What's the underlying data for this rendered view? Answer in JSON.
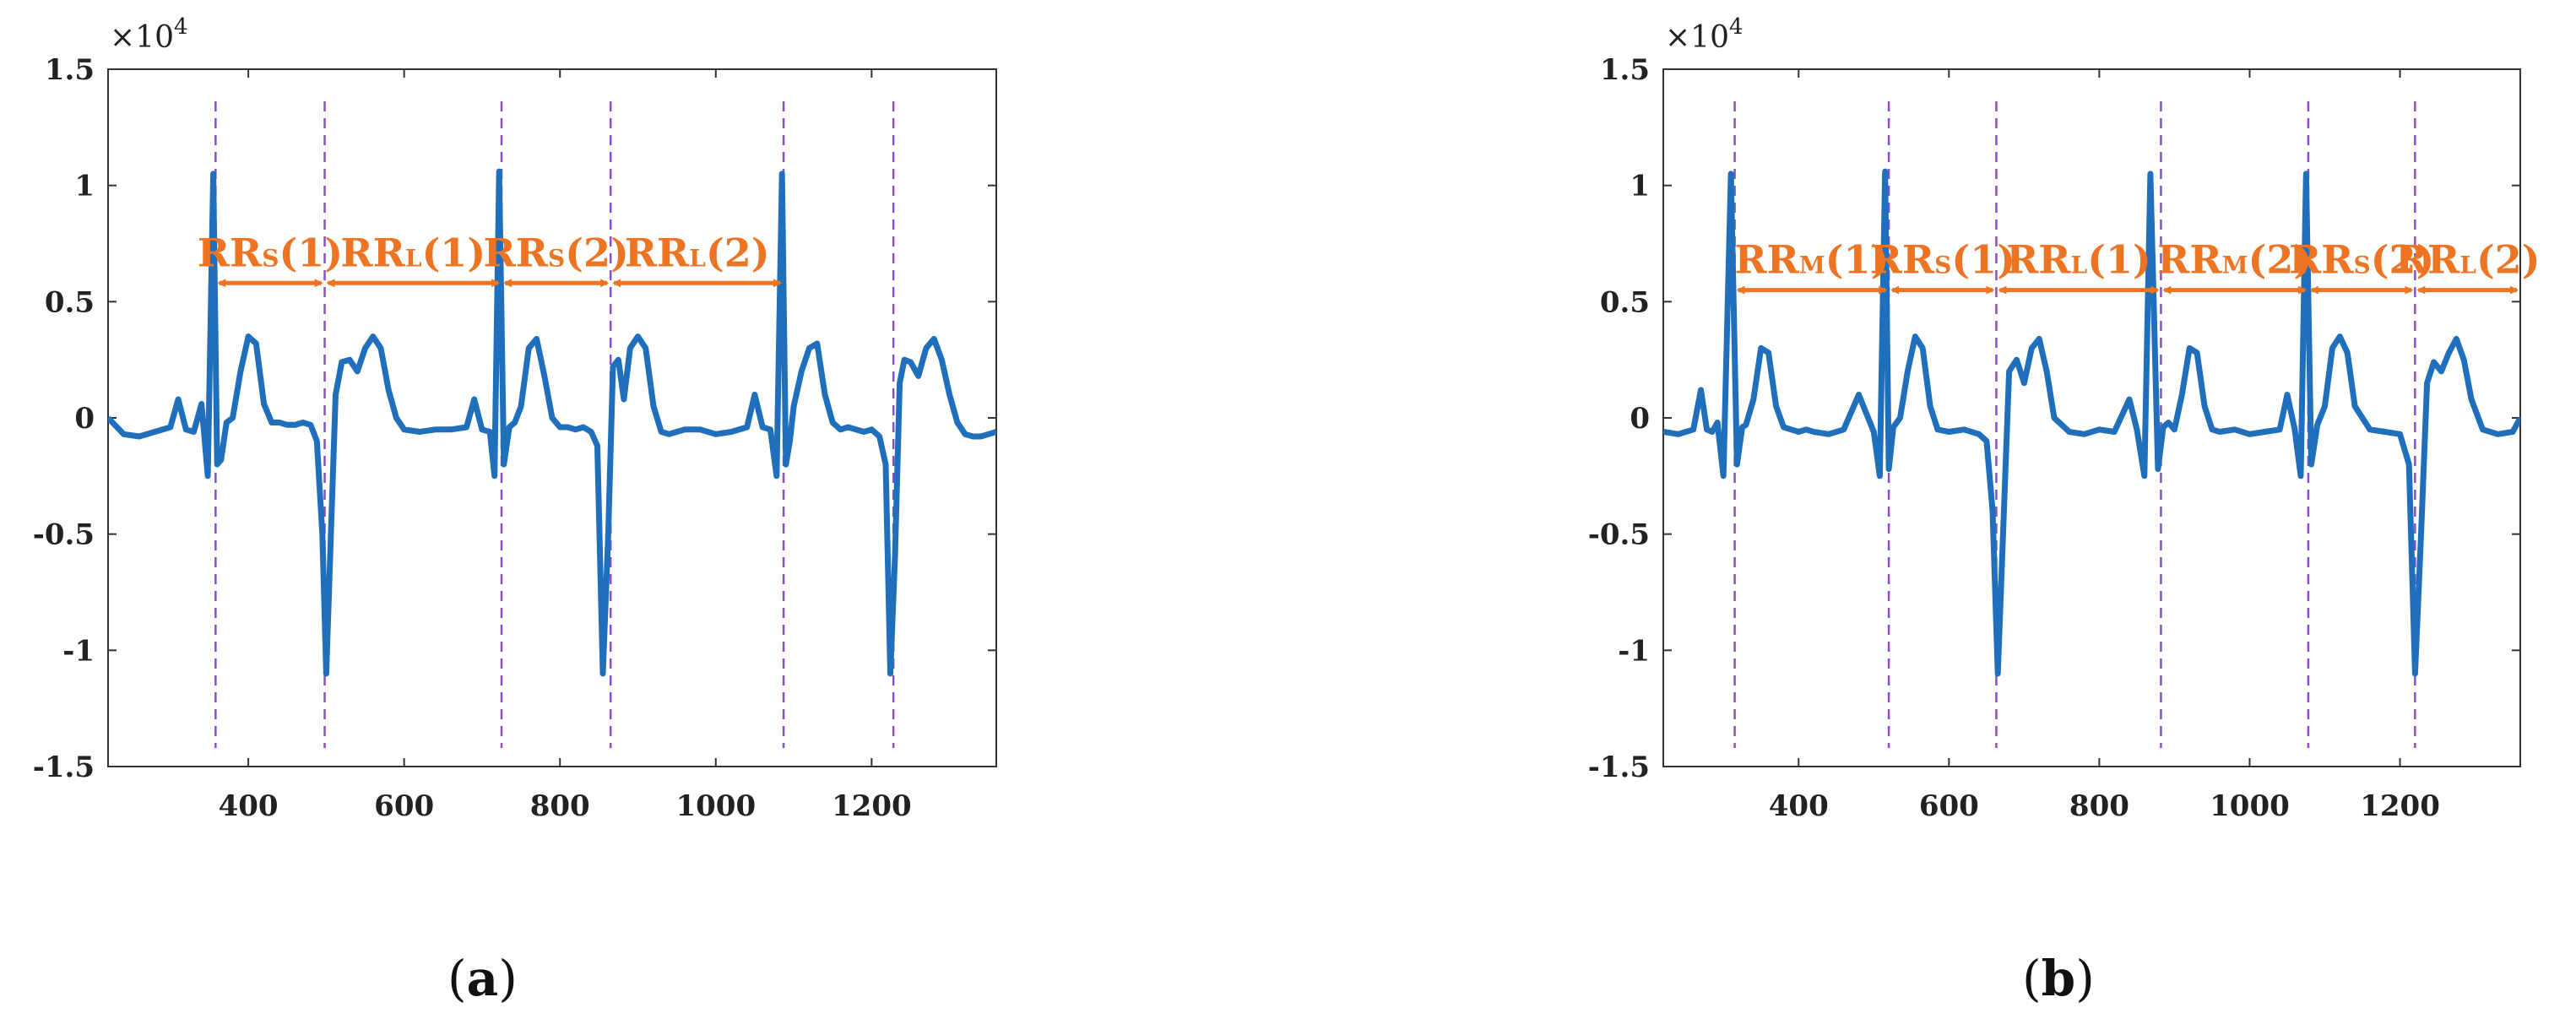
{
  "figure": {
    "caption_a": "a",
    "caption_b": "b",
    "exponent_label": "×10",
    "exponent_power": "4"
  },
  "colors": {
    "ecg": "#1f6fbd",
    "rpeak_line": "#8a4fc9",
    "interval": "#ec7423",
    "axis": "#333333"
  },
  "chart_data": [
    {
      "panel": "a",
      "type": "line",
      "title": "",
      "xlabel": "",
      "ylabel": "",
      "xlim": [
        220,
        1360
      ],
      "ylim": [
        -1.5,
        1.5
      ],
      "x_ticks": [
        400,
        600,
        800,
        1000,
        1200
      ],
      "y_ticks": [
        1.5,
        1,
        0.5,
        0,
        -0.5,
        -1,
        -1.5
      ],
      "y_tick_labels": [
        "1.5",
        "1",
        "0.5",
        "0",
        "-0.5",
        "-1",
        "-1.5"
      ],
      "grid": false,
      "series": [
        {
          "x": [
            220,
            240,
            260,
            280,
            300,
            310,
            320,
            330,
            340,
            348,
            355,
            360,
            365,
            372,
            380,
            390,
            400,
            410,
            420,
            430,
            440,
            450,
            460,
            470,
            480,
            488,
            495,
            500,
            505,
            512,
            520,
            530,
            540,
            550,
            560,
            570,
            580,
            590,
            600,
            620,
            640,
            660,
            680,
            690,
            700,
            710,
            716,
            722,
            728,
            735,
            742,
            750,
            760,
            770,
            780,
            790,
            800,
            810,
            820,
            830,
            840,
            848,
            855,
            862,
            868,
            875,
            882,
            890,
            900,
            910,
            920,
            930,
            940,
            950,
            960,
            980,
            1000,
            1020,
            1040,
            1050,
            1060,
            1070,
            1078,
            1085,
            1090,
            1095,
            1100,
            1110,
            1120,
            1130,
            1140,
            1150,
            1160,
            1170,
            1180,
            1190,
            1200,
            1210,
            1218,
            1224,
            1230,
            1236,
            1242,
            1250,
            1260,
            1270,
            1280,
            1290,
            1300,
            1310,
            1320,
            1330,
            1340,
            1350,
            1360
          ],
          "y": [
            0.0,
            -0.07,
            -0.08,
            -0.06,
            -0.04,
            0.08,
            -0.05,
            -0.06,
            0.06,
            -0.25,
            1.05,
            -0.2,
            -0.18,
            -0.02,
            0.0,
            0.2,
            0.35,
            0.32,
            0.06,
            -0.02,
            -0.02,
            -0.03,
            -0.03,
            -0.02,
            -0.03,
            -0.1,
            -0.5,
            -1.1,
            -0.6,
            0.1,
            0.24,
            0.25,
            0.2,
            0.3,
            0.35,
            0.3,
            0.12,
            0.0,
            -0.05,
            -0.06,
            -0.05,
            -0.05,
            -0.04,
            0.08,
            -0.05,
            -0.06,
            -0.25,
            1.06,
            -0.2,
            -0.04,
            -0.02,
            0.05,
            0.3,
            0.34,
            0.18,
            0.0,
            -0.04,
            -0.04,
            -0.05,
            -0.04,
            -0.06,
            -0.12,
            -1.1,
            -0.5,
            0.22,
            0.25,
            0.08,
            0.3,
            0.35,
            0.3,
            0.05,
            -0.06,
            -0.07,
            -0.06,
            -0.05,
            -0.05,
            -0.07,
            -0.06,
            -0.04,
            0.1,
            -0.04,
            -0.05,
            -0.25,
            1.05,
            -0.2,
            -0.1,
            0.05,
            0.2,
            0.3,
            0.32,
            0.1,
            -0.02,
            -0.05,
            -0.04,
            -0.05,
            -0.06,
            -0.05,
            -0.08,
            -0.2,
            -1.1,
            -0.6,
            0.15,
            0.25,
            0.24,
            0.18,
            0.3,
            0.34,
            0.25,
            0.1,
            -0.02,
            -0.07,
            -0.08,
            -0.08,
            -0.07,
            -0.06
          ]
        }
      ],
      "r_peak_markers_x": [
        358,
        498,
        725,
        865,
        1087,
        1228
      ],
      "intervals": [
        {
          "label": "RR",
          "sub": "S",
          "index": "(1)",
          "x_start": 358,
          "x_end": 498
        },
        {
          "label": "RR",
          "sub": "L",
          "index": "(1)",
          "x_start": 498,
          "x_end": 725
        },
        {
          "label": "RR",
          "sub": "S",
          "index": "(2)",
          "x_start": 725,
          "x_end": 865
        },
        {
          "label": "RR",
          "sub": "L",
          "index": "(2)",
          "x_start": 865,
          "x_end": 1087
        }
      ],
      "interval_level_y": 0.58
    },
    {
      "panel": "b",
      "type": "line",
      "title": "",
      "xlabel": "",
      "ylabel": "",
      "xlim": [
        220,
        1360
      ],
      "ylim": [
        -1.5,
        1.5
      ],
      "x_ticks": [
        400,
        600,
        800,
        1000,
        1200
      ],
      "y_ticks": [
        1.5,
        1,
        0.5,
        0,
        -0.5,
        -1,
        -1.5
      ],
      "y_tick_labels": [
        "1.5",
        "1",
        "0.5",
        "0",
        "-0.5",
        "-1",
        "-1.5"
      ],
      "grid": false,
      "series": [
        {
          "x": [
            220,
            240,
            260,
            270,
            278,
            285,
            292,
            300,
            310,
            318,
            325,
            330,
            340,
            350,
            360,
            370,
            380,
            390,
            400,
            410,
            420,
            440,
            460,
            480,
            500,
            508,
            515,
            520,
            526,
            535,
            545,
            555,
            565,
            575,
            585,
            600,
            620,
            640,
            650,
            658,
            665,
            672,
            680,
            690,
            700,
            710,
            720,
            730,
            740,
            760,
            780,
            800,
            820,
            840,
            850,
            860,
            868,
            878,
            885,
            892,
            900,
            910,
            920,
            930,
            940,
            950,
            960,
            980,
            1000,
            1020,
            1040,
            1050,
            1060,
            1068,
            1075,
            1082,
            1090,
            1100,
            1110,
            1120,
            1130,
            1140,
            1160,
            1180,
            1200,
            1212,
            1220,
            1228,
            1236,
            1245,
            1255,
            1265,
            1275,
            1285,
            1295,
            1310,
            1330,
            1350,
            1360
          ],
          "y": [
            -0.06,
            -0.07,
            -0.05,
            0.12,
            -0.05,
            -0.06,
            -0.02,
            -0.25,
            1.05,
            -0.2,
            -0.04,
            -0.03,
            0.08,
            0.3,
            0.28,
            0.05,
            -0.04,
            -0.05,
            -0.06,
            -0.05,
            -0.06,
            -0.07,
            -0.05,
            0.1,
            -0.06,
            -0.25,
            1.06,
            -0.22,
            -0.04,
            0.0,
            0.2,
            0.35,
            0.3,
            0.05,
            -0.05,
            -0.06,
            -0.05,
            -0.07,
            -0.1,
            -0.4,
            -1.1,
            -0.5,
            0.2,
            0.25,
            0.15,
            0.3,
            0.34,
            0.2,
            0.0,
            -0.06,
            -0.07,
            -0.05,
            -0.06,
            0.08,
            -0.05,
            -0.25,
            1.05,
            -0.22,
            -0.04,
            -0.02,
            -0.05,
            0.1,
            0.3,
            0.28,
            0.05,
            -0.05,
            -0.06,
            -0.05,
            -0.07,
            -0.06,
            -0.05,
            0.1,
            -0.05,
            -0.25,
            1.05,
            -0.2,
            -0.03,
            0.05,
            0.3,
            0.35,
            0.28,
            0.05,
            -0.05,
            -0.06,
            -0.07,
            -0.2,
            -1.1,
            -0.5,
            0.15,
            0.24,
            0.2,
            0.28,
            0.34,
            0.25,
            0.08,
            -0.05,
            -0.07,
            -0.06,
            0.0
          ]
        }
      ],
      "r_peak_markers_x": [
        315,
        520,
        663,
        882,
        1078,
        1220
      ],
      "intervals": [
        {
          "label": "RR",
          "sub": "M",
          "index": "(1)",
          "x_start": 315,
          "x_end": 520
        },
        {
          "label": "RR",
          "sub": "S",
          "index": "(1)",
          "x_start": 520,
          "x_end": 663
        },
        {
          "label": "RR",
          "sub": "L",
          "index": "(1)",
          "x_start": 663,
          "x_end": 882
        },
        {
          "label": "RR",
          "sub": "M",
          "index": "(2)",
          "x_start": 882,
          "x_end": 1078
        },
        {
          "label": "RR",
          "sub": "S",
          "index": "(2)",
          "x_start": 1078,
          "x_end": 1220
        },
        {
          "label": "RR",
          "sub": "L",
          "index": "(2)",
          "x_start": 1220,
          "x_end": 1360
        }
      ],
      "interval_level_y": 0.55
    }
  ]
}
